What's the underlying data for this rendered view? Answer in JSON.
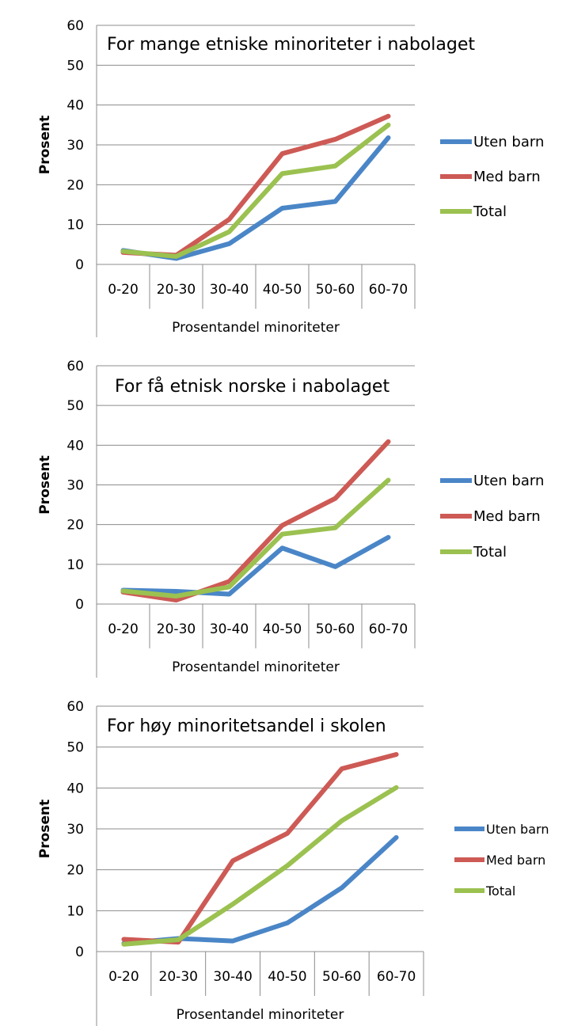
{
  "chart_data": [
    {
      "type": "line",
      "title": "For mange etniske minoriteter i nabolaget",
      "xlabel": "Prosentandel minoriteter",
      "ylabel": "Prosent",
      "ylim": [
        0,
        60
      ],
      "yticks": [
        "0",
        "10",
        "20",
        "30",
        "40",
        "50",
        "60"
      ],
      "categories": [
        "0-20",
        "20-30",
        "30-40",
        "40-50",
        "50-60",
        "60-70"
      ],
      "grid": true,
      "legend_position": "right",
      "series": [
        {
          "name": "Uten barn",
          "color": "#4a86c7",
          "values": [
            3.5,
            1.5,
            5.2,
            14.1,
            15.8,
            31.8
          ]
        },
        {
          "name": "Med barn",
          "color": "#cd5a55",
          "values": [
            3.0,
            2.3,
            11.3,
            27.8,
            31.4,
            37.2
          ]
        },
        {
          "name": "Total",
          "color": "#9bc150",
          "values": [
            3.3,
            2.0,
            8.2,
            22.8,
            24.7,
            35.0
          ]
        }
      ]
    },
    {
      "type": "line",
      "title": "For få etnisk norske i nabolaget",
      "xlabel": "Prosentandel minoriteter",
      "ylabel": "Prosent",
      "ylim": [
        0,
        60
      ],
      "yticks": [
        "0",
        "10",
        "20",
        "30",
        "40",
        "50",
        "60"
      ],
      "categories": [
        "0-20",
        "20-30",
        "30-40",
        "40-50",
        "50-60",
        "60-70"
      ],
      "grid": true,
      "legend_position": "right",
      "series": [
        {
          "name": "Uten barn",
          "color": "#4a86c7",
          "values": [
            3.5,
            3.2,
            2.5,
            14.1,
            9.4,
            16.8
          ]
        },
        {
          "name": "Med barn",
          "color": "#cd5a55",
          "values": [
            3.0,
            1.0,
            5.7,
            19.8,
            26.6,
            40.9
          ]
        },
        {
          "name": "Total",
          "color": "#9bc150",
          "values": [
            3.3,
            2.0,
            4.3,
            17.6,
            19.2,
            31.2
          ]
        }
      ]
    },
    {
      "type": "line",
      "title": "For høy minoritetsandel i skolen",
      "xlabel": "Prosentandel minoriteter",
      "ylabel": "Prosent",
      "ylim": [
        0,
        60
      ],
      "yticks": [
        "0",
        "10",
        "20",
        "30",
        "40",
        "50",
        "60"
      ],
      "categories": [
        "0-20",
        "20-30",
        "30-40",
        "40-50",
        "50-60",
        "60-70"
      ],
      "grid": true,
      "legend_position": "right",
      "series": [
        {
          "name": "Uten barn",
          "color": "#4a86c7",
          "values": [
            2.0,
            3.2,
            2.6,
            7.0,
            15.6,
            27.9
          ]
        },
        {
          "name": "Med barn",
          "color": "#cd5a55",
          "values": [
            3.0,
            2.3,
            22.2,
            28.9,
            44.7,
            48.2
          ]
        },
        {
          "name": "Total",
          "color": "#9bc150",
          "values": [
            1.8,
            2.9,
            11.6,
            21.0,
            32.0,
            40.1
          ]
        }
      ]
    }
  ]
}
